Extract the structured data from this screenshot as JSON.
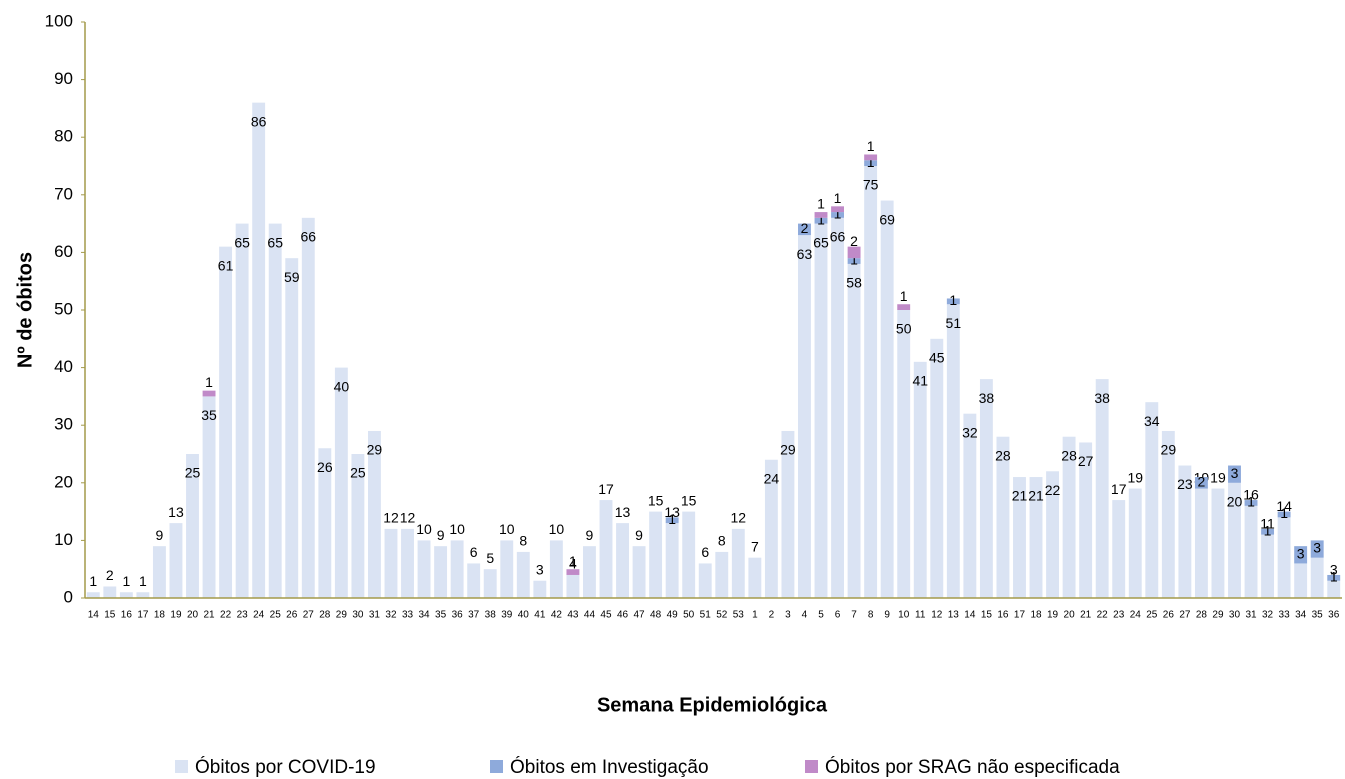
{
  "chart_data": {
    "type": "stacked_bar",
    "x_label": "Semana Epidemiológica",
    "y_label": "Nº de óbitos",
    "categories": [
      "14",
      "15",
      "16",
      "17",
      "18",
      "19",
      "20",
      "21",
      "22",
      "23",
      "24",
      "25",
      "26",
      "27",
      "28",
      "29",
      "30",
      "31",
      "32",
      "33",
      "34",
      "35",
      "36",
      "37",
      "38",
      "39",
      "40",
      "41",
      "42",
      "43",
      "44",
      "45",
      "46",
      "47",
      "48",
      "49",
      "50",
      "51",
      "52",
      "53",
      "1",
      "2",
      "3",
      "4",
      "5",
      "6",
      "7",
      "8",
      "9",
      "10",
      "11",
      "12",
      "13",
      "14",
      "15",
      "16",
      "17",
      "18",
      "19",
      "20",
      "21",
      "22",
      "23",
      "24",
      "25",
      "26",
      "27",
      "28",
      "29",
      "30",
      "31",
      "32",
      "33",
      "34",
      "35",
      "36"
    ],
    "series": [
      {
        "name": "Óbitos por COVID-19",
        "color": "#dae3f3",
        "values": [
          1,
          2,
          1,
          1,
          9,
          13,
          25,
          35,
          61,
          65,
          86,
          65,
          59,
          66,
          26,
          40,
          25,
          29,
          12,
          12,
          10,
          9,
          10,
          6,
          5,
          10,
          8,
          3,
          10,
          4,
          9,
          17,
          13,
          9,
          15,
          13,
          15,
          6,
          8,
          12,
          7,
          24,
          29,
          63,
          65,
          66,
          58,
          75,
          69,
          50,
          41,
          45,
          51,
          32,
          38,
          28,
          21,
          21,
          22,
          28,
          27,
          38,
          17,
          19,
          34,
          29,
          23,
          19,
          19,
          20,
          16,
          11,
          14,
          6,
          7,
          3
        ]
      },
      {
        "name": "Óbitos em Investigação",
        "color": "#8eaadb",
        "values": [
          0,
          0,
          0,
          0,
          0,
          0,
          0,
          0,
          0,
          0,
          0,
          0,
          0,
          0,
          0,
          0,
          0,
          0,
          0,
          0,
          0,
          0,
          0,
          0,
          0,
          0,
          0,
          0,
          0,
          0,
          0,
          0,
          0,
          0,
          0,
          1,
          0,
          0,
          0,
          0,
          0,
          0,
          0,
          2,
          1,
          1,
          1,
          1,
          0,
          0,
          0,
          0,
          1,
          0,
          0,
          0,
          0,
          0,
          0,
          0,
          0,
          0,
          0,
          0,
          0,
          0,
          0,
          2,
          0,
          3,
          1,
          1,
          1,
          3,
          3,
          1
        ]
      },
      {
        "name": "Óbitos por SRAG não especificada",
        "color": "#c08ac8",
        "values": [
          0,
          0,
          0,
          0,
          0,
          0,
          0,
          1,
          0,
          0,
          0,
          0,
          0,
          0,
          0,
          0,
          0,
          0,
          0,
          0,
          0,
          0,
          0,
          0,
          0,
          0,
          0,
          0,
          0,
          1,
          0,
          0,
          0,
          0,
          0,
          0,
          0,
          0,
          0,
          0,
          0,
          0,
          0,
          0,
          1,
          1,
          2,
          1,
          0,
          1,
          0,
          0,
          0,
          0,
          0,
          0,
          0,
          0,
          0,
          0,
          0,
          0,
          0,
          0,
          0,
          0,
          0,
          0,
          0,
          0,
          0,
          0,
          0,
          0,
          0,
          0
        ]
      }
    ],
    "ylim": [
      0,
      100
    ],
    "yticks": [
      0,
      10,
      20,
      30,
      40,
      50,
      60,
      70,
      80,
      90,
      100
    ],
    "grid": false,
    "legend": "bottom"
  }
}
